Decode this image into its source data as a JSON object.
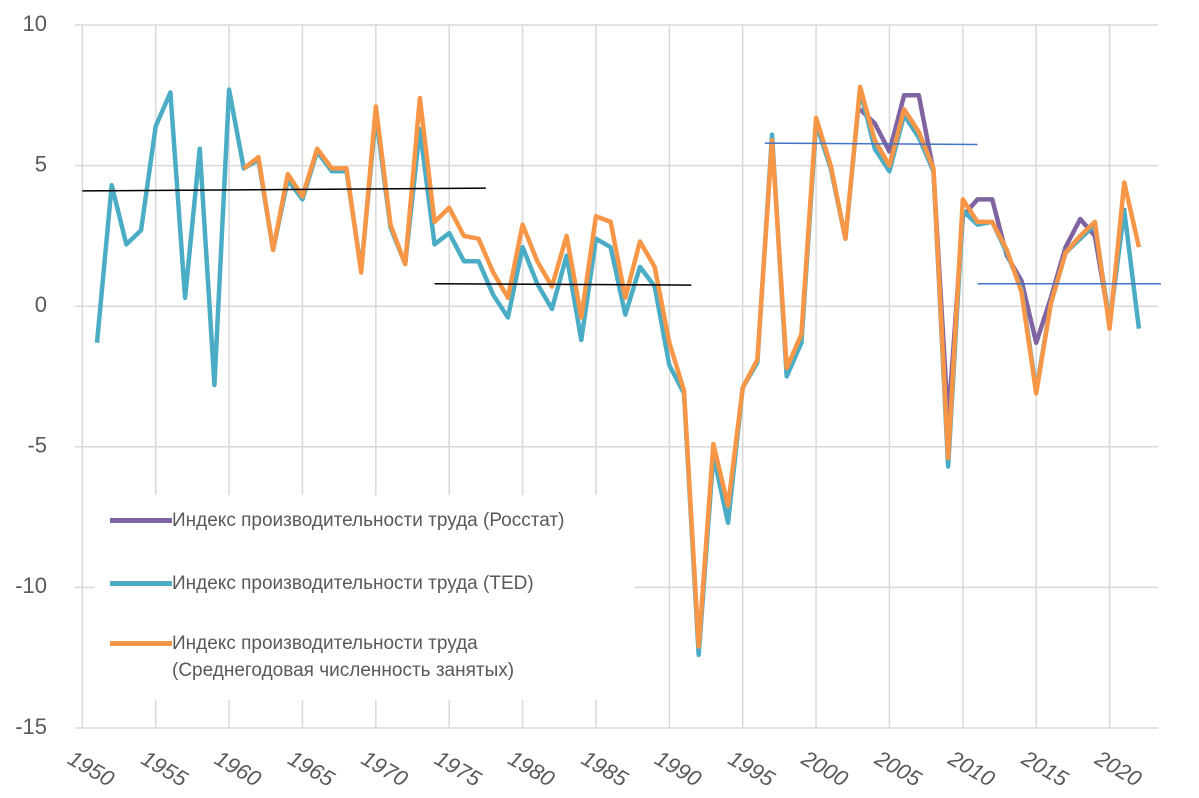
{
  "chart_data": {
    "type": "line",
    "x": [
      1951,
      1952,
      1953,
      1954,
      1955,
      1956,
      1957,
      1958,
      1959,
      1960,
      1961,
      1962,
      1963,
      1964,
      1965,
      1966,
      1967,
      1968,
      1969,
      1970,
      1971,
      1972,
      1973,
      1974,
      1975,
      1976,
      1977,
      1978,
      1979,
      1980,
      1981,
      1982,
      1983,
      1984,
      1985,
      1986,
      1987,
      1988,
      1989,
      1990,
      1991,
      1992,
      1993,
      1994,
      1995,
      1996,
      1997,
      1998,
      1999,
      2000,
      2001,
      2002,
      2003,
      2004,
      2005,
      2006,
      2007,
      2008,
      2009,
      2010,
      2011,
      2012,
      2013,
      2014,
      2015,
      2016,
      2017,
      2018,
      2019,
      2020,
      2021,
      2022
    ],
    "series": [
      {
        "name": "Индекс производительности труда (Росстат)",
        "color": "#8064a2",
        "values": [
          null,
          null,
          null,
          null,
          null,
          null,
          null,
          null,
          null,
          null,
          null,
          null,
          null,
          null,
          null,
          null,
          null,
          null,
          null,
          null,
          null,
          null,
          null,
          null,
          null,
          null,
          null,
          null,
          null,
          null,
          null,
          null,
          null,
          null,
          null,
          null,
          null,
          null,
          null,
          null,
          null,
          null,
          null,
          null,
          null,
          null,
          null,
          null,
          null,
          null,
          null,
          null,
          7.0,
          6.5,
          5.5,
          7.5,
          7.5,
          4.8,
          -4.1,
          3.2,
          3.8,
          3.8,
          1.8,
          0.9,
          -1.3,
          0.3,
          2.1,
          3.1,
          2.5,
          -0.6,
          3.5,
          null
        ]
      },
      {
        "name": "Индекс производительности труда (TED)",
        "color": "#4bacc6",
        "values": [
          -1.3,
          4.3,
          2.2,
          2.7,
          6.4,
          7.6,
          0.3,
          5.6,
          -2.8,
          7.7,
          4.9,
          5.2,
          2.0,
          4.5,
          3.8,
          5.5,
          4.8,
          4.8,
          1.3,
          6.8,
          2.8,
          1.5,
          6.3,
          2.2,
          2.6,
          1.6,
          1.6,
          0.4,
          -0.4,
          2.1,
          0.8,
          -0.1,
          1.8,
          -1.2,
          2.4,
          2.1,
          -0.3,
          1.4,
          0.7,
          -2.1,
          -3.1,
          -12.4,
          -5.3,
          -7.7,
          -2.9,
          -2.0,
          6.1,
          -2.5,
          -1.3,
          6.5,
          4.9,
          2.4,
          7.7,
          5.6,
          4.8,
          6.8,
          6.0,
          4.8,
          -5.7,
          3.4,
          2.9,
          3.0,
          1.9,
          0.6,
          -3.0,
          0.1,
          1.9,
          2.4,
          2.9,
          -0.6,
          3.4,
          -0.8
        ]
      },
      {
        "name": "Индекс производительности труда (Среднегодовая численность занятых)",
        "color": "#f79646",
        "values": [
          null,
          null,
          null,
          null,
          null,
          null,
          null,
          null,
          null,
          null,
          4.9,
          5.3,
          2.0,
          4.7,
          3.9,
          5.6,
          4.9,
          4.9,
          1.2,
          7.1,
          2.9,
          1.5,
          7.4,
          3.0,
          3.5,
          2.5,
          2.4,
          1.2,
          0.3,
          2.9,
          1.6,
          0.7,
          2.5,
          -0.4,
          3.2,
          3.0,
          0.3,
          2.3,
          1.4,
          -1.3,
          -3.0,
          -12.1,
          -4.9,
          -7.1,
          -2.9,
          -1.9,
          5.9,
          -2.2,
          -1.0,
          6.7,
          5.0,
          2.4,
          7.8,
          5.9,
          5.0,
          7.0,
          6.2,
          4.9,
          -5.4,
          3.8,
          3.0,
          3.0,
          2.0,
          0.5,
          -3.1,
          0.1,
          1.9,
          2.5,
          3.0,
          -0.8,
          4.4,
          2.1
        ]
      }
    ],
    "trend_lines": [
      {
        "color": "#000000",
        "x": [
          1950,
          1977.5
        ],
        "values": [
          4.1,
          4.2
        ]
      },
      {
        "color": "#000000",
        "x": [
          1974,
          1991.5
        ],
        "values": [
          0.8,
          0.75
        ]
      },
      {
        "color": "#4472c4",
        "x": [
          1996.5,
          2011
        ],
        "values": [
          5.8,
          5.75
        ]
      },
      {
        "color": "#4472c4",
        "x": [
          2011,
          2023.5
        ],
        "values": [
          0.8,
          0.8
        ]
      }
    ],
    "xlim": [
      1949.5,
      2023.3
    ],
    "xticks": [
      1950,
      1955,
      1960,
      1965,
      1970,
      1975,
      1980,
      1985,
      1990,
      1995,
      2000,
      2005,
      2010,
      2015,
      2020
    ],
    "ylim": [
      -15,
      10
    ],
    "yticks": [
      -15,
      -10,
      -5,
      0,
      5,
      10
    ],
    "grid": true
  }
}
